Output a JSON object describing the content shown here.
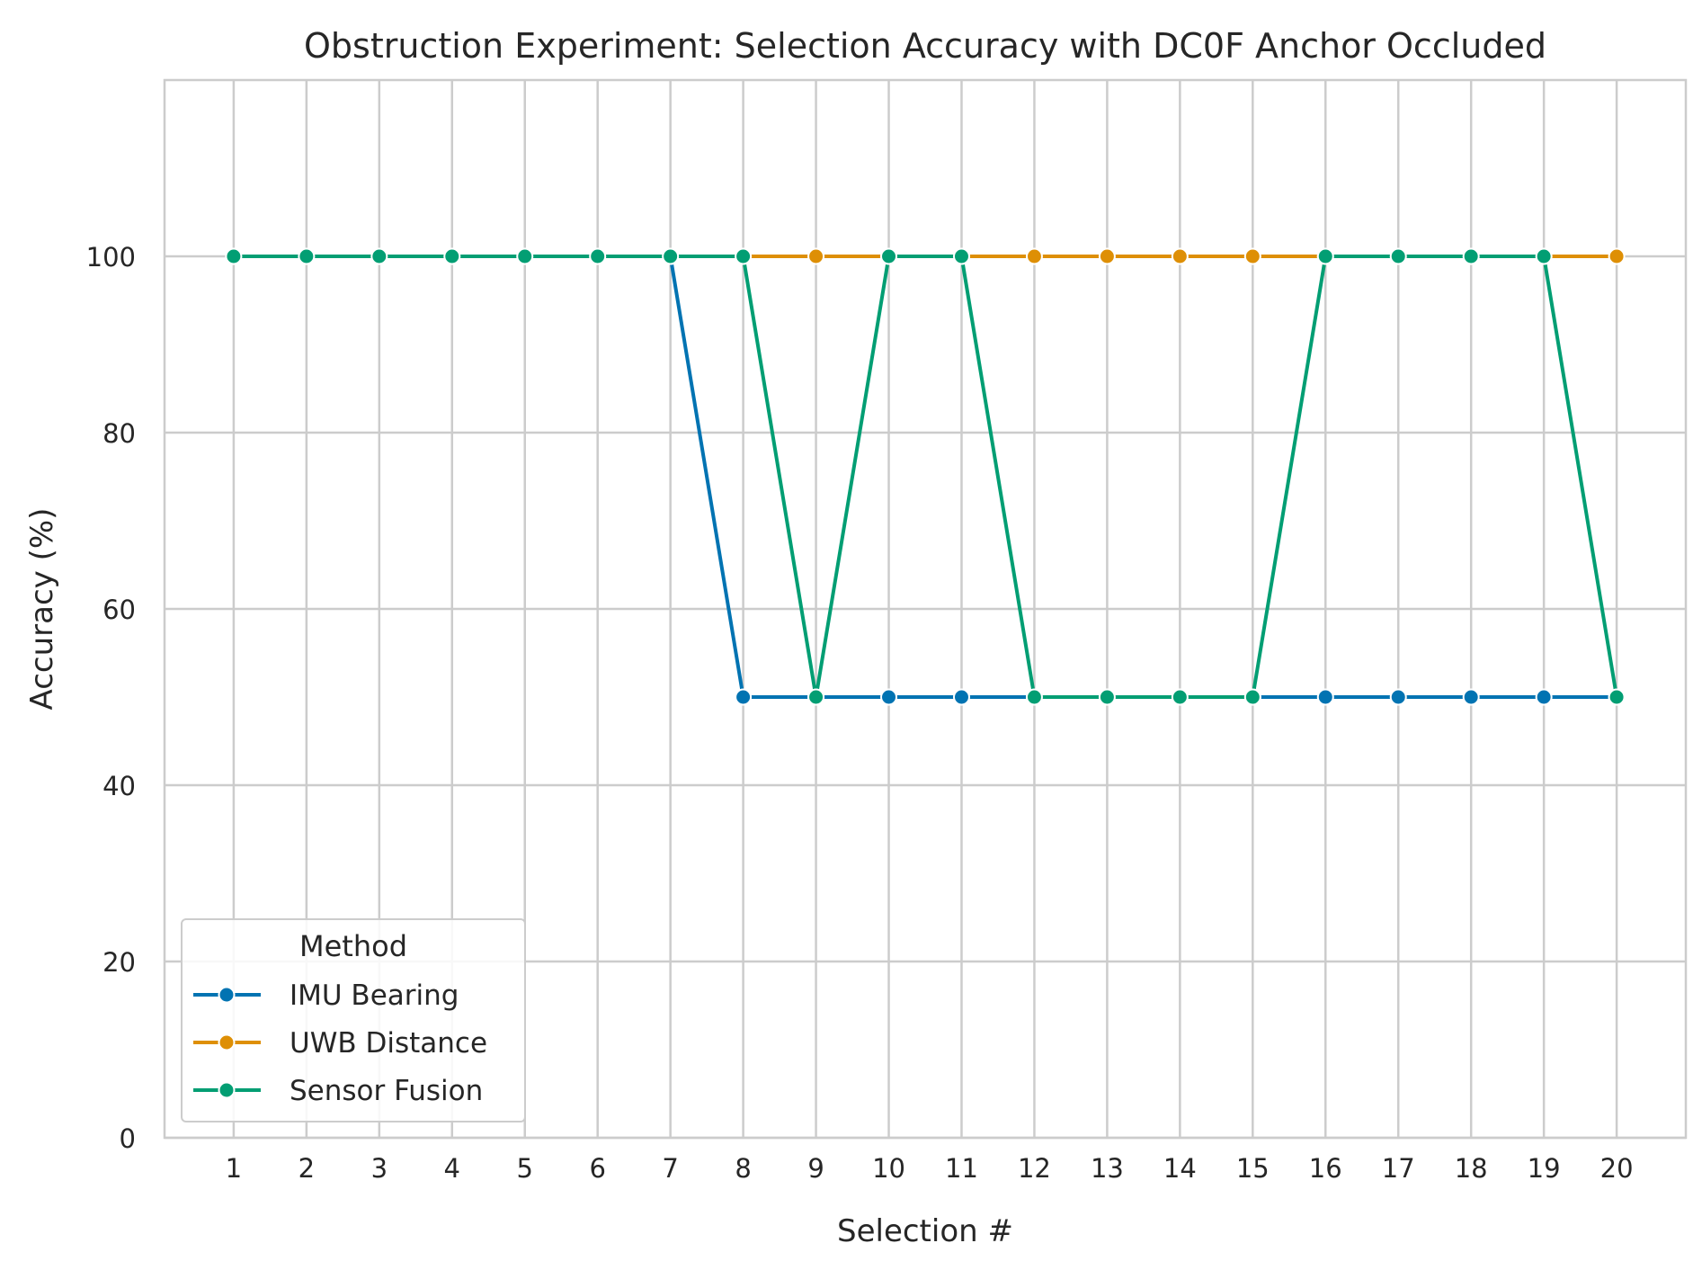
{
  "chart_data": {
    "type": "line",
    "title": "Obstruction Experiment: Selection Accuracy with DC0F Anchor Occluded",
    "xlabel": "Selection #",
    "ylabel": "Accuracy (%)",
    "x": [
      1,
      2,
      3,
      4,
      5,
      6,
      7,
      8,
      9,
      10,
      11,
      12,
      13,
      14,
      15,
      16,
      17,
      18,
      19,
      20
    ],
    "xlim": [
      0.05,
      20.95
    ],
    "ylim": [
      0,
      120
    ],
    "yticks": [
      0,
      20,
      40,
      60,
      80,
      100
    ],
    "grid": true,
    "legend": {
      "title": "Method",
      "placement": "lower-left"
    },
    "series": [
      {
        "name": "IMU Bearing",
        "color": "#0173b2",
        "values": [
          100,
          100,
          100,
          100,
          100,
          100,
          100,
          50,
          50,
          50,
          50,
          50,
          50,
          50,
          50,
          50,
          50,
          50,
          50,
          50
        ]
      },
      {
        "name": "UWB Distance",
        "color": "#de8f05",
        "values": [
          100,
          100,
          100,
          100,
          100,
          100,
          100,
          100,
          100,
          100,
          100,
          100,
          100,
          100,
          100,
          100,
          100,
          100,
          100,
          100
        ]
      },
      {
        "name": "Sensor Fusion",
        "color": "#029e73",
        "values": [
          100,
          100,
          100,
          100,
          100,
          100,
          100,
          100,
          50,
          100,
          100,
          50,
          50,
          50,
          50,
          100,
          100,
          100,
          100,
          50
        ]
      }
    ]
  }
}
